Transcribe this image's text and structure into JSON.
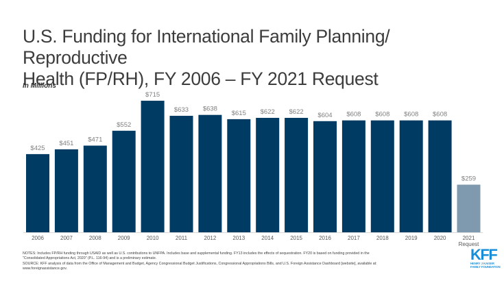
{
  "page": {
    "title_line1": "U.S. Funding for International Family Planning/ Reproductive",
    "title_line2": "Health (FP/RH), FY 2006 – FY 2021 Request",
    "units": "In Millions"
  },
  "chart_data": {
    "type": "bar",
    "title": "U.S. Funding for International Family Planning/ Reproductive Health (FP/RH), FY 2006 – FY 2021 Request",
    "ylabel": "In Millions",
    "xlabel": "",
    "categories": [
      "2006",
      "2007",
      "2008",
      "2009",
      "2010",
      "2011",
      "2012",
      "2013",
      "2014",
      "2015",
      "2016",
      "2017",
      "2018",
      "2019",
      "2020",
      "2021 Request"
    ],
    "category_lines": [
      [
        "2006"
      ],
      [
        "2007"
      ],
      [
        "2008"
      ],
      [
        "2009"
      ],
      [
        "2010"
      ],
      [
        "2011"
      ],
      [
        "2012"
      ],
      [
        "2013"
      ],
      [
        "2014"
      ],
      [
        "2015"
      ],
      [
        "2016"
      ],
      [
        "2017"
      ],
      [
        "2018"
      ],
      [
        "2019"
      ],
      [
        "2020"
      ],
      [
        "2021",
        "Request"
      ]
    ],
    "values": [
      425,
      451,
      471,
      552,
      715,
      633,
      638,
      615,
      622,
      622,
      604,
      608,
      608,
      608,
      608,
      259
    ],
    "data_labels": [
      "$425",
      "$451",
      "$471",
      "$552",
      "$715",
      "$633",
      "$638",
      "$615",
      "$622",
      "$622",
      "$604",
      "$608",
      "$608",
      "$608",
      "$608",
      "$259"
    ],
    "highlight_index": 15,
    "colors": {
      "bar": "#003b64",
      "request_bar": "#7f9aae",
      "label": "#7f7f7f",
      "axis": "#d9d9d9"
    },
    "ylim": [
      0,
      715
    ],
    "grid": false,
    "legend": "none"
  },
  "notes": {
    "line1": "NOTES:  Includes FP/RH  funding through USAID as well as U.S. contributions to UNFPA.  Includes base and supplemental funding. FY13 includes the effects of sequestration. FY20 is based on funding provided in the",
    "line2": "\"Consolidated Appropriations Act, 2020\" (P.L. 116-94) and is a preliminary estimate.",
    "line3": "SOURCE:  KFF analysis of data from the Office of Management and Budget,  Agency Congressional Budget Justifications, Congressional Appropriations Bills, and U.S. Foreign  Assistance Dashboard [website], available at:",
    "line4": "www.foreignassistance.gov."
  },
  "logo": {
    "mark": "KFF",
    "line1": "HENRY J KAISER",
    "line2": "FAMILY FOUNDATION"
  }
}
